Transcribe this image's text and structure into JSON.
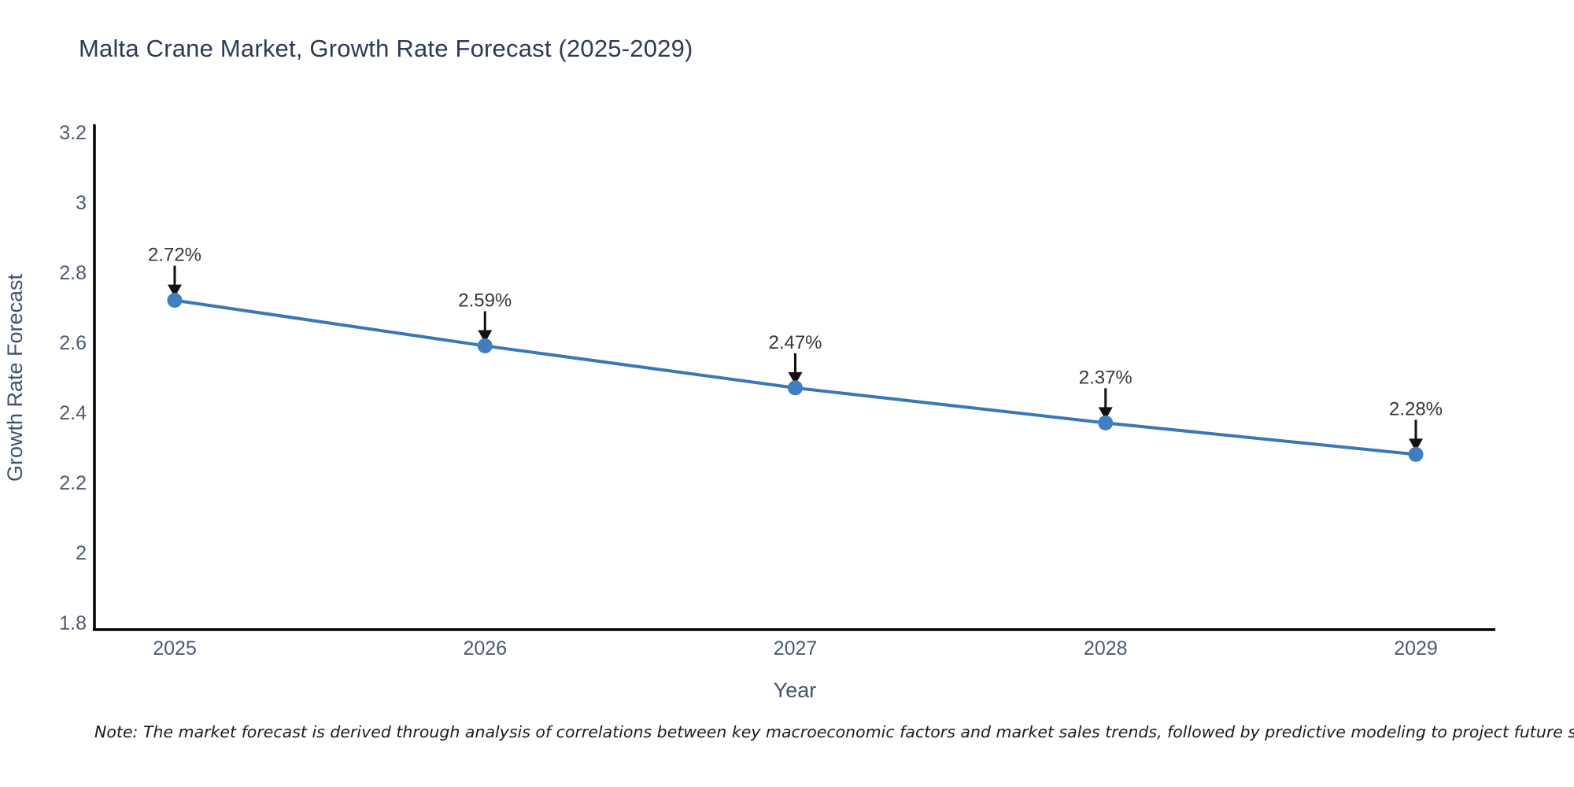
{
  "title": "Malta Crane Market, Growth Rate Forecast (2025-2029)",
  "note": "Note: The market forecast is derived through analysis of correlations between key macroeconomic factors and market sales trends, followed by predictive modeling to project future sales",
  "colors": {
    "marker": "#3f7fbf",
    "line": "#3978b4",
    "axis_line": "#000000",
    "arrow": "#111111",
    "title_text": "#2e3a55",
    "axis_text": "#4c5b70",
    "annotation_text": "#383838"
  },
  "chart_data": {
    "type": "line",
    "title": "Malta Crane Market, Growth Rate Forecast (2025-2029)",
    "categories": [
      "2025",
      "2026",
      "2027",
      "2028",
      "2029"
    ],
    "series": [
      {
        "name": "Growth Rate Forecast",
        "values": [
          2.72,
          2.59,
          2.47,
          2.37,
          2.28
        ]
      }
    ],
    "point_labels": [
      "2.72%",
      "2.59%",
      "2.47%",
      "2.37%",
      "2.28%"
    ],
    "xlabel": "Year",
    "ylabel": "Growth Rate Forecast",
    "ylim": [
      1.8,
      3.2
    ],
    "yticks": [
      3.2,
      3.0,
      2.8,
      2.6,
      2.4,
      2.2,
      2.0,
      1.8
    ],
    "ytick_labels": [
      "3.2",
      "3",
      "2.8",
      "2.6",
      "2.4",
      "2.2",
      "2",
      "1.8"
    ],
    "grid": false,
    "legend_position": "none",
    "marker_style": "circle",
    "annotation_style": "arrow-down-to-point"
  }
}
